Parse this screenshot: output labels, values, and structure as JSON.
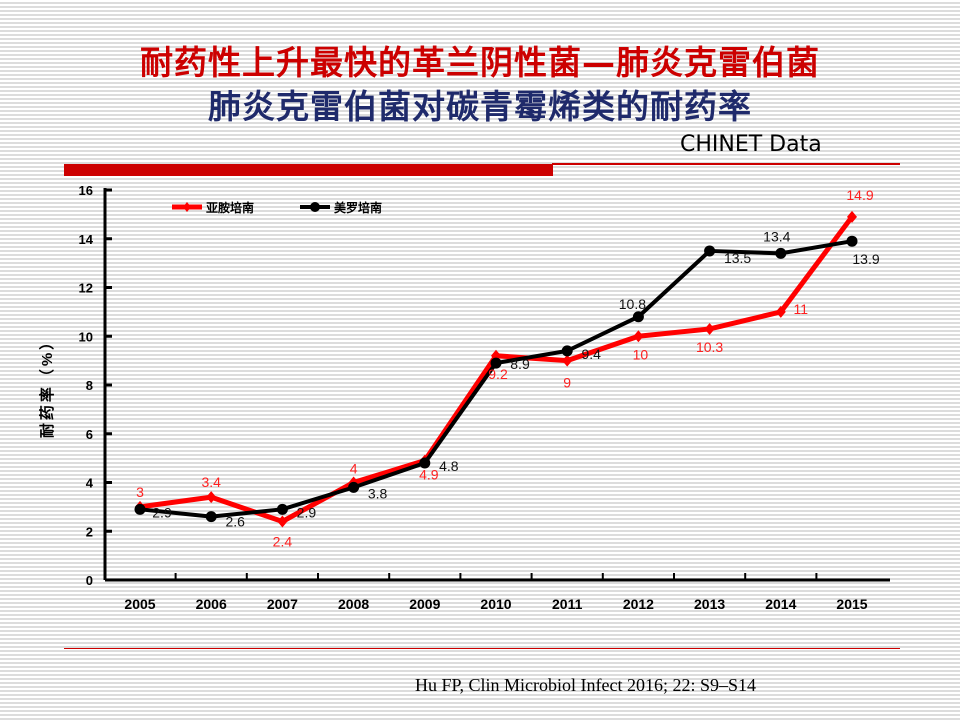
{
  "header": {
    "title_line1": "耐药性上升最快的革兰阴性菌—肺炎克雷伯菌",
    "title_line2": "肺炎克雷伯菌对碳青霉烯类的耐药率",
    "source_tag": "CHINET Data"
  },
  "citation": "Hu FP, Clin Microbiol Infect 2016; 22: S9–S14",
  "colors": {
    "title1": "#cc0000",
    "title2": "#1f2a6b",
    "imipenem": "#ff0000",
    "meropenem": "#000000"
  },
  "chart_data": {
    "type": "line",
    "title": "",
    "xlabel": "",
    "ylabel": "耐药率（%）",
    "ylim": [
      0,
      16
    ],
    "yticks": [
      0,
      2,
      4,
      6,
      8,
      10,
      12,
      14,
      16
    ],
    "categories": [
      "2005",
      "2006",
      "2007",
      "2008",
      "2009",
      "2010",
      "2011",
      "2012",
      "2013",
      "2014",
      "2015"
    ],
    "legend_position": "top-left",
    "series": [
      {
        "name": "亚胺培南",
        "color": "#ff0000",
        "marker": "diamond",
        "values": [
          3,
          3.4,
          2.4,
          4,
          4.9,
          9.2,
          9,
          10,
          10.3,
          11,
          14.9
        ]
      },
      {
        "name": "美罗培南",
        "color": "#000000",
        "marker": "circle",
        "values": [
          2.9,
          2.6,
          2.9,
          3.8,
          4.8,
          8.9,
          9.4,
          10.8,
          13.5,
          13.4,
          13.9
        ]
      }
    ]
  }
}
